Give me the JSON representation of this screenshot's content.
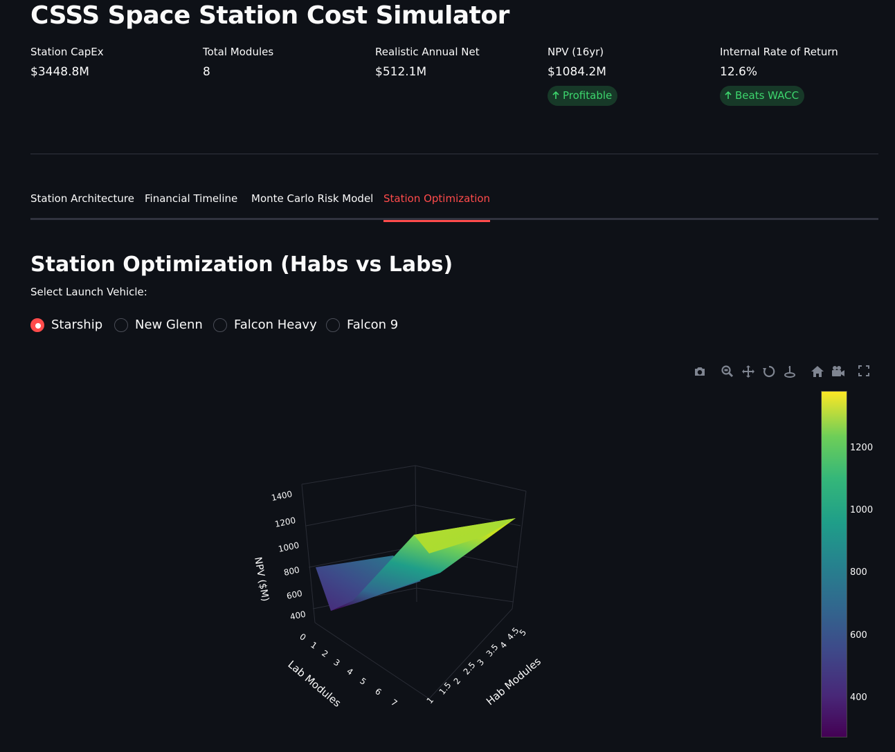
{
  "app": {
    "title": "CSSS Space Station Cost Simulator"
  },
  "metrics": [
    {
      "label": "Station CapEx",
      "value": "$3448.8M"
    },
    {
      "label": "Total Modules",
      "value": "8"
    },
    {
      "label": "Realistic Annual Net",
      "value": "$512.1M"
    },
    {
      "label": "NPV (16yr)",
      "value": "$1084.2M",
      "delta": "Profitable"
    },
    {
      "label": "Internal Rate of Return",
      "value": "12.6%",
      "delta": "Beats WACC"
    }
  ],
  "tabs": [
    {
      "label": "Station Architecture",
      "active": false
    },
    {
      "label": "Financial Timeline",
      "active": false
    },
    {
      "label": "Monte Carlo Risk Model",
      "active": false
    },
    {
      "label": "Station Optimization",
      "active": true
    }
  ],
  "section": {
    "title": "Station Optimization (Habs vs Labs)",
    "radio_label": "Select Launch Vehicle:",
    "options": [
      "Starship",
      "New Glenn",
      "Falcon Heavy",
      "Falcon 9"
    ],
    "selected": "Starship"
  },
  "modebar": {
    "icons": [
      "camera-icon",
      "zoom-icon",
      "pan-icon",
      "orbit-icon",
      "turntable-icon",
      "home-icon",
      "camera-view-icon",
      "fullscreen-icon"
    ]
  },
  "chart_data": {
    "type": "surface",
    "z_axis_label": "NPV ($M)",
    "x_axis_label": "Lab Modules",
    "y_axis_label": "Hab Modules",
    "x_ticks": [
      "0",
      "1",
      "2",
      "3",
      "4",
      "5",
      "6",
      "7"
    ],
    "y_ticks": [
      "1",
      "1.5",
      "2",
      "2.5",
      "3",
      "3.5",
      "4",
      "4.5",
      "5"
    ],
    "z_ticks": [
      "400",
      "600",
      "800",
      "1000",
      "1200",
      "1400"
    ],
    "colorbar_ticks": [
      "400",
      "600",
      "800",
      "1000",
      "1200"
    ],
    "colorscale": "viridis",
    "surface_corner_values": {
      "lab_0_hab_1": 780,
      "lab_7_hab_1": 320,
      "lab_0_hab_5": 1250,
      "lab_7_hab_5": 1380
    },
    "colors": {
      "low": "#440154",
      "mid": "#21918c",
      "high": "#fde725"
    }
  }
}
